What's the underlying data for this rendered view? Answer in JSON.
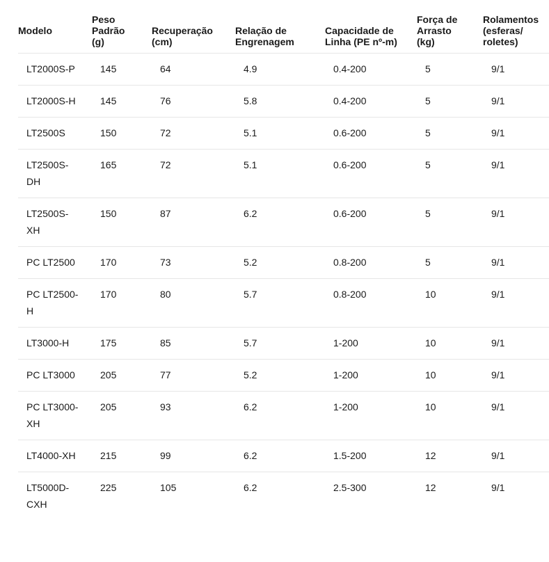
{
  "table": {
    "headers": [
      "Modelo",
      "Peso Padrão (g)",
      "Recuperação (cm)",
      "Relação de Engrenagem",
      "Capacidade de Linha (PE nº-m)",
      "Força de Arrasto (kg)",
      "Rolamentos (esferas/ roletes)"
    ],
    "rows": [
      [
        "LT2000S-P",
        "145",
        "64",
        "4.9",
        "0.4-200",
        "5",
        "9/1"
      ],
      [
        "LT2000S-H",
        "145",
        "76",
        "5.8",
        "0.4-200",
        "5",
        "9/1"
      ],
      [
        "LT2500S",
        "150",
        "72",
        "5.1",
        "0.6-200",
        "5",
        "9/1"
      ],
      [
        "LT2500S-DH",
        "165",
        "72",
        "5.1",
        "0.6-200",
        "5",
        "9/1"
      ],
      [
        "LT2500S-XH",
        "150",
        "87",
        "6.2",
        "0.6-200",
        "5",
        "9/1"
      ],
      [
        "PC LT2500",
        "170",
        "73",
        "5.2",
        "0.8-200",
        "5",
        "9/1"
      ],
      [
        "PC LT2500-H",
        "170",
        "80",
        "5.7",
        "0.8-200",
        "10",
        "9/1"
      ],
      [
        "LT3000-H",
        "175",
        "85",
        "5.7",
        "1-200",
        "10",
        "9/1"
      ],
      [
        "PC LT3000",
        "205",
        "77",
        "5.2",
        "1-200",
        "10",
        "9/1"
      ],
      [
        "PC LT3000-XH",
        "205",
        "93",
        "6.2",
        "1-200",
        "10",
        "9/1"
      ],
      [
        "LT4000-XH",
        "215",
        "99",
        "6.2",
        "1.5-200",
        "12",
        "9/1"
      ],
      [
        "LT5000D-CXH",
        "225",
        "105",
        "6.2",
        "2.5-300",
        "12",
        "9/1"
      ]
    ]
  }
}
